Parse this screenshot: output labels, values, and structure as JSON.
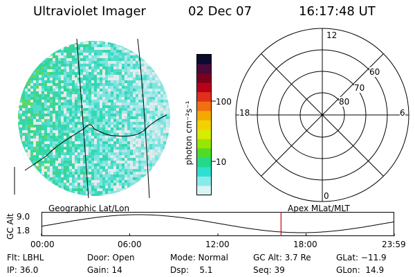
{
  "header": {
    "instrument": "Ultraviolet Imager",
    "date": "02 Dec 07",
    "time": "16:17:48 UT"
  },
  "colorbar": {
    "unit_label": "photon cm⁻²s⁻¹",
    "ticks": [
      "100",
      "10"
    ],
    "colors": [
      "#0b0b2e",
      "#4a0a3a",
      "#7a0020",
      "#b8001a",
      "#e0301a",
      "#f07010",
      "#f5a800",
      "#f3d100",
      "#d8ec00",
      "#9be600",
      "#4fdc28",
      "#24d98a",
      "#2ee0d2",
      "#89eaea",
      "#d8f4f4"
    ]
  },
  "polar": {
    "top_label": "12",
    "bottom_label": "0",
    "left_label": "18",
    "right_label": "6",
    "lat_labels": [
      "60",
      "70",
      "80"
    ]
  },
  "timeline": {
    "left_label": "Geographic Lat/Lon",
    "right_label": "Apex  MLat/MLT",
    "axis_title": "GC Alt",
    "y_ticks": [
      "9.0",
      "1.8"
    ],
    "x_ticks": [
      "00:00",
      "06:00",
      "12:00",
      "18:00",
      "23:59"
    ],
    "current_time": "16:17:48",
    "marker_color": "#cc0000"
  },
  "status": {
    "flt": "Flt: LBHL",
    "ip": "IP: 36.0",
    "door": "Door: Open",
    "gain": "Gain: 14",
    "mode": "Mode: Normal",
    "dsp": "Dsp:    5.1",
    "gcalt": "GC Alt: 3.7 Re",
    "seq": "Seq: 39",
    "glat": "GLat: −11.9",
    "glon": "GLon:  14.9"
  }
}
